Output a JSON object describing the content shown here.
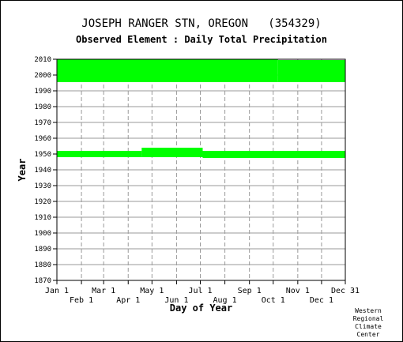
{
  "chart_data": {
    "type": "scatter",
    "title": "JOSEPH RANGER STN, OREGON   (354329)",
    "subtitle": "Observed Element : Daily Total Precipitation",
    "xlabel": "Day of Year",
    "ylabel": "Year",
    "xlim": [
      1,
      365
    ],
    "ylim": [
      1870,
      2010
    ],
    "y_ticks": [
      1870,
      1880,
      1890,
      1900,
      1910,
      1920,
      1930,
      1940,
      1950,
      1960,
      1970,
      1980,
      1990,
      2000,
      2010
    ],
    "x_ticks_top_row": [
      {
        "label": "Jan 1",
        "day": 1
      },
      {
        "label": "Mar 1",
        "day": 60
      },
      {
        "label": "May 1",
        "day": 121
      },
      {
        "label": "Jul 1",
        "day": 182
      },
      {
        "label": "Sep 1",
        "day": 244
      },
      {
        "label": "Nov 1",
        "day": 305
      },
      {
        "label": "Dec 31",
        "day": 365
      }
    ],
    "x_ticks_bottom_row": [
      {
        "label": "Feb 1",
        "day": 32
      },
      {
        "label": "Apr 1",
        "day": 91
      },
      {
        "label": "Jun 1",
        "day": 152
      },
      {
        "label": "Aug 1",
        "day": 213
      },
      {
        "label": "Oct 1",
        "day": 274
      },
      {
        "label": "Dec 1",
        "day": 335
      }
    ],
    "grid": true,
    "marker_color": "#00ff00",
    "coverage_segments": [
      {
        "start_day": 1,
        "end_day": 280,
        "start_year": 1995.5,
        "end_year": 2010
      },
      {
        "start_day": 280,
        "end_day": 365,
        "start_year": 1995.5,
        "end_year": 2009.5
      },
      {
        "start_day": 1,
        "end_day": 108,
        "start_year": 1948,
        "end_year": 1952
      },
      {
        "start_day": 108,
        "end_day": 185,
        "start_year": 1948,
        "end_year": 1954
      },
      {
        "start_day": 185,
        "end_day": 365,
        "start_year": 1947.5,
        "end_year": 1952
      }
    ]
  },
  "credit": [
    "Western",
    "Regional",
    "Climate",
    "Center"
  ]
}
